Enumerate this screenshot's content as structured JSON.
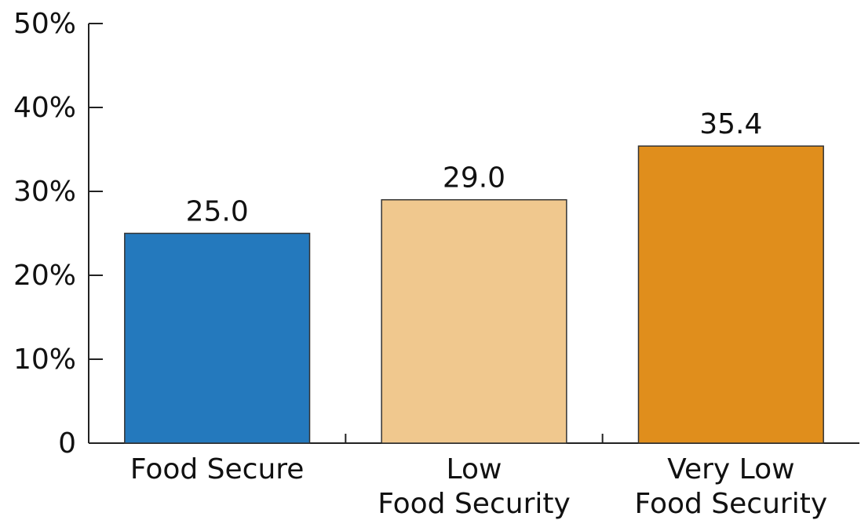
{
  "chart_data": {
    "type": "bar",
    "title": "",
    "xlabel": "",
    "ylabel": "",
    "categories": [
      [
        "Food Secure"
      ],
      [
        "Low",
        "Food Security"
      ],
      [
        "Very Low",
        "Food Security"
      ]
    ],
    "values": [
      25.0,
      29.0,
      35.4
    ],
    "value_labels": [
      "25.0",
      "29.0",
      "35.4"
    ],
    "ylim": [
      0,
      50
    ],
    "y_ticks": [
      0,
      10,
      20,
      30,
      40,
      50
    ],
    "y_tick_labels": [
      "0",
      "10%",
      "20%",
      "30%",
      "40%",
      "50%"
    ],
    "colors": [
      "#2479BD",
      "#F0C88E",
      "#E08E1C"
    ],
    "grid": false,
    "legend": "none"
  }
}
